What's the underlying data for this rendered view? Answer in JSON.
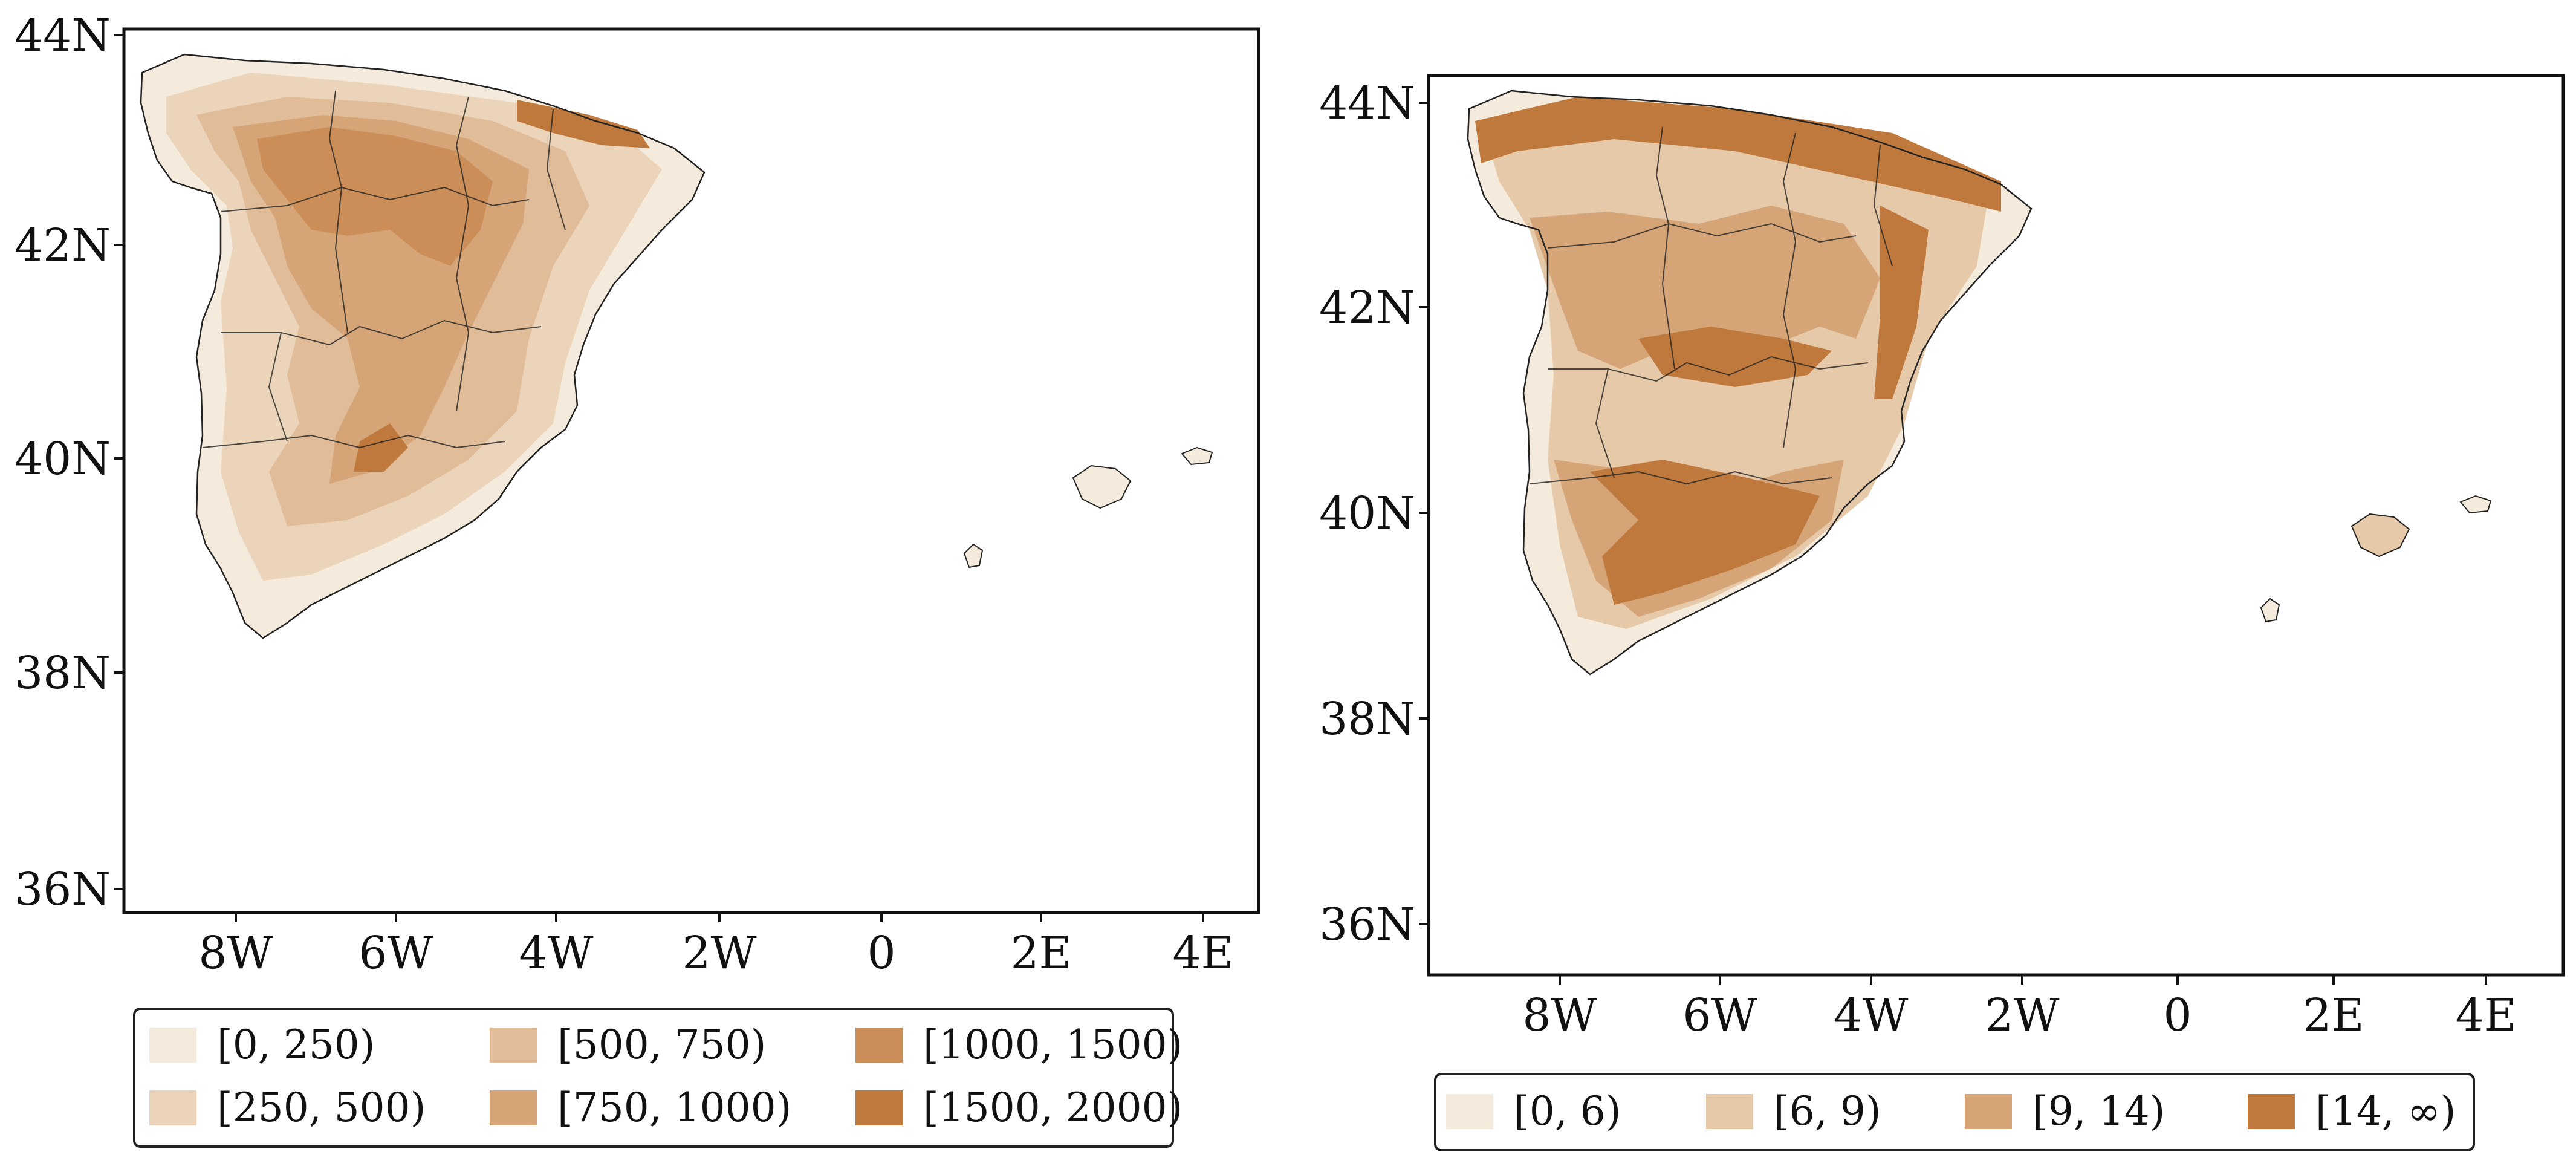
{
  "colors": {
    "land_outline": "#222222",
    "frame": "#111111",
    "background": "#ffffff"
  },
  "maps": [
    {
      "id": "left",
      "lat_ticks": [
        "44N",
        "42N",
        "40N",
        "38N",
        "36N"
      ],
      "lon_ticks": [
        "8W",
        "6W",
        "4W",
        "2W",
        "0",
        "2E",
        "4E"
      ],
      "legend": [
        {
          "label": "[0, 250)",
          "color": "#f5ebdc"
        },
        {
          "label": "[250, 500)",
          "color": "#ebd4b9"
        },
        {
          "label": "[500, 750)",
          "color": "#e0bc98"
        },
        {
          "label": "[750, 1000)",
          "color": "#d5a578"
        },
        {
          "label": "[1000, 1500)",
          "color": "#cb8e58"
        },
        {
          "label": "[1500, 2000)",
          "color": "#c0793c"
        }
      ]
    },
    {
      "id": "right",
      "lat_ticks": [
        "44N",
        "42N",
        "40N",
        "38N",
        "36N"
      ],
      "lon_ticks": [
        "8W",
        "6W",
        "4W",
        "2W",
        "0",
        "2E",
        "4E"
      ],
      "legend": [
        {
          "label": "[0, 6)",
          "color": "#f5ebdc"
        },
        {
          "label": "[6, 9)",
          "color": "#e6c9a8"
        },
        {
          "label": "[9, 14)",
          "color": "#d5a578"
        },
        {
          "label": "[14, ∞)",
          "color": "#c0793c"
        }
      ]
    }
  ]
}
